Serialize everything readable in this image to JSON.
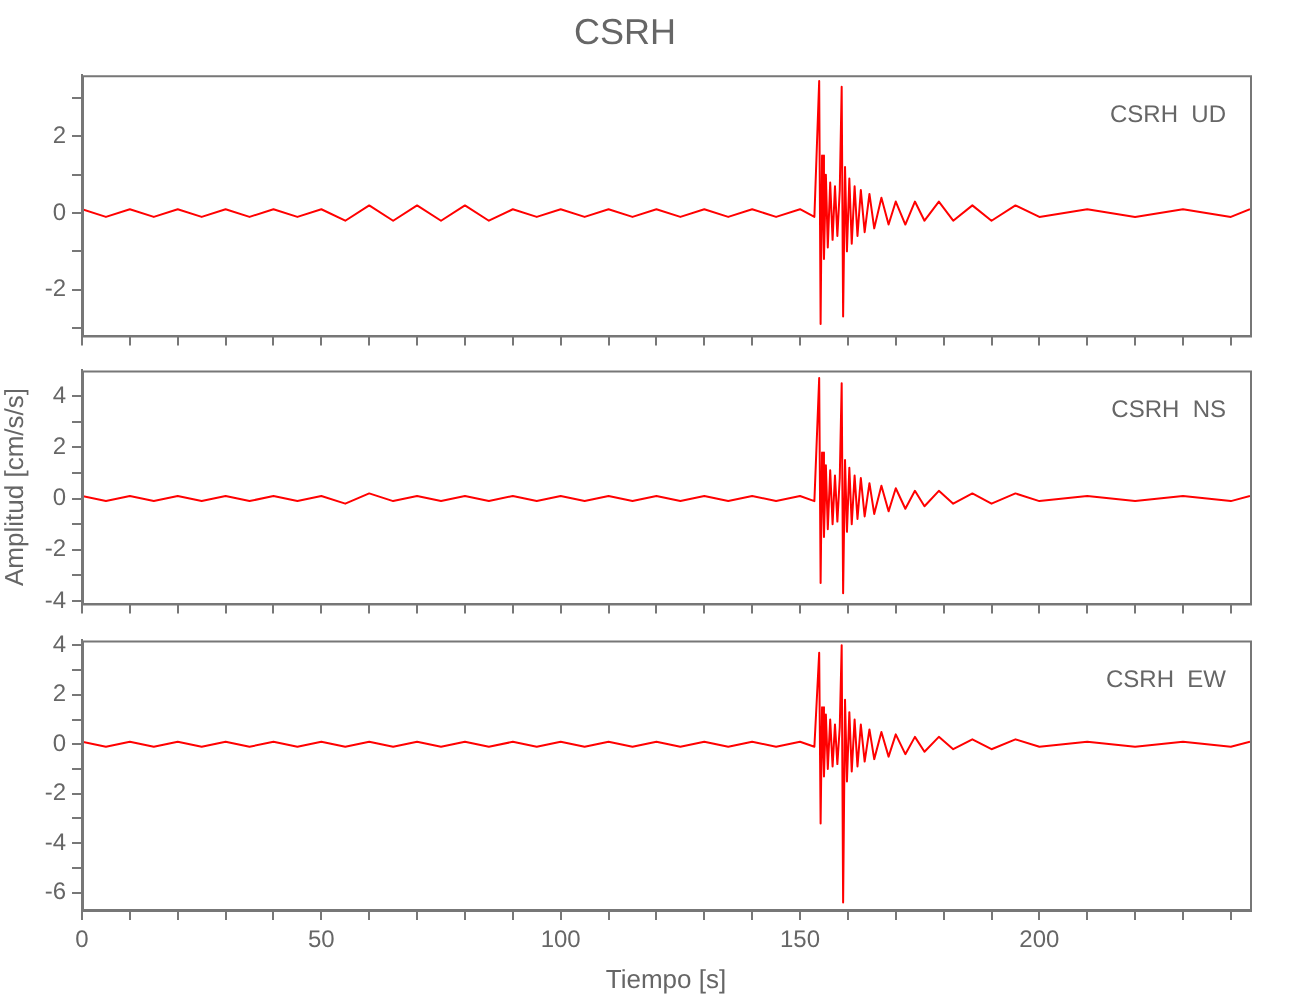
{
  "chart_data": [
    {
      "type": "line",
      "title": "CSRH",
      "annotations": [
        "CSRH  UD"
      ],
      "tick_labels": "y",
      "x": [
        0,
        5,
        10,
        15,
        20,
        25,
        30,
        35,
        40,
        45,
        50,
        55,
        60,
        65,
        70,
        75,
        80,
        85,
        90,
        95,
        100,
        105,
        110,
        115,
        120,
        125,
        130,
        135,
        140,
        145,
        150,
        153,
        154,
        154.3,
        154.6,
        155,
        155.4,
        155.8,
        156.3,
        156.8,
        157.3,
        157.8,
        158.3,
        158.7,
        159,
        159.4,
        159.8,
        160.3,
        160.8,
        161.4,
        162,
        162.7,
        163.5,
        164.5,
        165.5,
        167,
        168.5,
        170,
        172,
        174,
        176,
        179,
        182,
        186,
        190,
        195,
        200,
        210,
        220,
        230,
        240,
        244
      ],
      "series": [
        {
          "color": "#ff0000",
          "values": [
            0.1,
            -0.1,
            0.1,
            -0.1,
            0.1,
            -0.1,
            0.1,
            -0.1,
            0.1,
            -0.1,
            0.1,
            -0.2,
            0.2,
            -0.2,
            0.2,
            -0.2,
            0.2,
            -0.2,
            0.1,
            -0.1,
            0.1,
            -0.1,
            0.1,
            -0.1,
            0.1,
            -0.1,
            0.1,
            -0.1,
            0.1,
            -0.1,
            0.1,
            -0.1,
            3.45,
            -2.9,
            1.5,
            -1.2,
            1.0,
            -0.9,
            0.8,
            -0.7,
            0.7,
            -0.6,
            0.6,
            3.3,
            -2.7,
            1.2,
            -1.0,
            0.9,
            -0.8,
            0.7,
            -0.6,
            0.6,
            -0.5,
            0.5,
            -0.4,
            0.4,
            -0.3,
            0.3,
            -0.3,
            0.3,
            -0.2,
            0.3,
            -0.2,
            0.2,
            -0.2,
            0.2,
            -0.1,
            0.1,
            -0.1,
            0.1,
            -0.1,
            0.1
          ]
        }
      ],
      "xlim": [
        0,
        244
      ],
      "xticks": [
        0,
        {
          "value": 10,
          "label": null
        },
        {
          "value": 20,
          "label": null
        },
        {
          "value": 30,
          "label": null
        },
        {
          "value": 40,
          "label": null
        },
        50,
        {
          "value": 60,
          "label": null
        },
        {
          "value": 70,
          "label": null
        },
        {
          "value": 80,
          "label": null
        },
        {
          "value": 90,
          "label": null
        },
        100,
        {
          "value": 110,
          "label": null
        },
        {
          "value": 120,
          "label": null
        },
        {
          "value": 130,
          "label": null
        },
        {
          "value": 140,
          "label": null
        },
        150,
        {
          "value": 160,
          "label": null
        },
        {
          "value": 170,
          "label": null
        },
        {
          "value": 180,
          "label": null
        },
        {
          "value": 190,
          "label": null
        },
        200,
        {
          "value": 210,
          "label": null
        },
        {
          "value": 220,
          "label": null
        },
        {
          "value": 230,
          "label": null
        },
        {
          "value": 240,
          "label": null
        }
      ],
      "ylim": [
        -3.2,
        3.6
      ],
      "yticks": [
        {
          "value": -3,
          "label": null
        },
        -2,
        {
          "value": -1,
          "label": null
        },
        0,
        {
          "value": 1,
          "label": null
        },
        2,
        {
          "value": 3,
          "label": null
        }
      ]
    },
    {
      "type": "line",
      "ylabel": "Amplitud [cm/s/s]",
      "annotations": [
        "CSRH  NS"
      ],
      "tick_labels": "y",
      "x": [
        0,
        5,
        10,
        15,
        20,
        25,
        30,
        35,
        40,
        45,
        50,
        55,
        60,
        65,
        70,
        75,
        80,
        85,
        90,
        95,
        100,
        105,
        110,
        115,
        120,
        125,
        130,
        135,
        140,
        145,
        150,
        153,
        154,
        154.3,
        154.6,
        155,
        155.4,
        155.8,
        156.3,
        156.8,
        157.3,
        157.8,
        158.3,
        158.7,
        159,
        159.4,
        159.8,
        160.3,
        160.8,
        161.4,
        162,
        162.7,
        163.5,
        164.5,
        165.5,
        167,
        168.5,
        170,
        172,
        174,
        176,
        179,
        182,
        186,
        190,
        195,
        200,
        210,
        220,
        230,
        240,
        244
      ],
      "series": [
        {
          "color": "#ff0000",
          "values": [
            0.1,
            -0.1,
            0.1,
            -0.1,
            0.1,
            -0.1,
            0.1,
            -0.1,
            0.1,
            -0.1,
            0.1,
            -0.2,
            0.2,
            -0.1,
            0.1,
            -0.1,
            0.1,
            -0.1,
            0.1,
            -0.1,
            0.1,
            -0.1,
            0.1,
            -0.1,
            0.1,
            -0.1,
            0.1,
            -0.1,
            0.1,
            -0.1,
            0.1,
            -0.1,
            4.7,
            -3.3,
            1.8,
            -1.5,
            1.3,
            -1.2,
            1.1,
            -1.0,
            0.9,
            -0.9,
            0.8,
            4.5,
            -3.7,
            1.5,
            -1.3,
            1.2,
            -1.0,
            0.9,
            -0.8,
            0.8,
            -0.7,
            0.6,
            -0.6,
            0.5,
            -0.5,
            0.4,
            -0.4,
            0.3,
            -0.3,
            0.3,
            -0.2,
            0.2,
            -0.2,
            0.2,
            -0.1,
            0.1,
            -0.1,
            0.1,
            -0.1,
            0.1
          ]
        }
      ],
      "xlim": [
        0,
        244
      ],
      "xticks": [
        0,
        {
          "value": 10,
          "label": null
        },
        {
          "value": 20,
          "label": null
        },
        {
          "value": 30,
          "label": null
        },
        {
          "value": 40,
          "label": null
        },
        50,
        {
          "value": 60,
          "label": null
        },
        {
          "value": 70,
          "label": null
        },
        {
          "value": 80,
          "label": null
        },
        {
          "value": 90,
          "label": null
        },
        100,
        {
          "value": 110,
          "label": null
        },
        {
          "value": 120,
          "label": null
        },
        {
          "value": 130,
          "label": null
        },
        {
          "value": 140,
          "label": null
        },
        150,
        {
          "value": 160,
          "label": null
        },
        {
          "value": 170,
          "label": null
        },
        {
          "value": 180,
          "label": null
        },
        {
          "value": 190,
          "label": null
        },
        200,
        {
          "value": 210,
          "label": null
        },
        {
          "value": 220,
          "label": null
        },
        {
          "value": 230,
          "label": null
        },
        {
          "value": 240,
          "label": null
        }
      ],
      "ylim": [
        -4.1,
        5
      ],
      "yticks": [
        -4,
        {
          "value": -3,
          "label": null
        },
        -2,
        {
          "value": -1,
          "label": null
        },
        0,
        {
          "value": 1,
          "label": null
        },
        2,
        {
          "value": 3,
          "label": null
        },
        4
      ]
    },
    {
      "type": "line",
      "xlabel": "Tiempo [s]",
      "annotations": [
        "CSRH  EW"
      ],
      "x": [
        0,
        5,
        10,
        15,
        20,
        25,
        30,
        35,
        40,
        45,
        50,
        55,
        60,
        65,
        70,
        75,
        80,
        85,
        90,
        95,
        100,
        105,
        110,
        115,
        120,
        125,
        130,
        135,
        140,
        145,
        150,
        153,
        154,
        154.3,
        154.6,
        155,
        155.4,
        155.8,
        156.3,
        156.8,
        157.3,
        157.8,
        158.3,
        158.7,
        159,
        159.4,
        159.8,
        160.3,
        160.8,
        161.4,
        162,
        162.7,
        163.5,
        164.5,
        165.5,
        167,
        168.5,
        170,
        172,
        174,
        176,
        179,
        182,
        186,
        190,
        195,
        200,
        210,
        220,
        230,
        240,
        244
      ],
      "series": [
        {
          "color": "#ff0000",
          "values": [
            0.1,
            -0.1,
            0.1,
            -0.1,
            0.1,
            -0.1,
            0.1,
            -0.1,
            0.1,
            -0.1,
            0.1,
            -0.1,
            0.1,
            -0.1,
            0.1,
            -0.1,
            0.1,
            -0.1,
            0.1,
            -0.1,
            0.1,
            -0.1,
            0.1,
            -0.1,
            0.1,
            -0.1,
            0.1,
            -0.1,
            0.1,
            -0.1,
            0.1,
            -0.1,
            3.7,
            -3.2,
            1.5,
            -1.3,
            1.2,
            -1.0,
            1.0,
            -0.9,
            0.8,
            -0.8,
            0.7,
            4.0,
            -6.4,
            1.8,
            -1.5,
            1.3,
            -1.1,
            1.0,
            -0.9,
            0.8,
            -0.7,
            0.6,
            -0.6,
            0.5,
            -0.5,
            0.4,
            -0.4,
            0.3,
            -0.3,
            0.3,
            -0.2,
            0.2,
            -0.2,
            0.2,
            -0.1,
            0.1,
            -0.1,
            0.1,
            -0.1,
            0.1
          ]
        }
      ],
      "xlim": [
        0,
        244
      ],
      "xticks": [
        0,
        {
          "value": 10,
          "label": null
        },
        {
          "value": 20,
          "label": null
        },
        {
          "value": 30,
          "label": null
        },
        {
          "value": 40,
          "label": null
        },
        50,
        {
          "value": 60,
          "label": null
        },
        {
          "value": 70,
          "label": null
        },
        {
          "value": 80,
          "label": null
        },
        {
          "value": 90,
          "label": null
        },
        100,
        {
          "value": 110,
          "label": null
        },
        {
          "value": 120,
          "label": null
        },
        {
          "value": 130,
          "label": null
        },
        {
          "value": 140,
          "label": null
        },
        150,
        {
          "value": 160,
          "label": null
        },
        {
          "value": 170,
          "label": null
        },
        {
          "value": 180,
          "label": null
        },
        {
          "value": 190,
          "label": null
        },
        200,
        {
          "value": 210,
          "label": null
        },
        {
          "value": 220,
          "label": null
        },
        {
          "value": 230,
          "label": null
        },
        {
          "value": 240,
          "label": null
        }
      ],
      "ylim": [
        -6.7,
        4.2
      ],
      "yticks": [
        -6,
        {
          "value": -5,
          "label": null
        },
        -4,
        {
          "value": -3,
          "label": null
        },
        -2,
        {
          "value": -1,
          "label": null
        },
        0,
        {
          "value": 1,
          "label": null
        },
        2,
        {
          "value": 3,
          "label": null
        },
        4
      ]
    }
  ]
}
